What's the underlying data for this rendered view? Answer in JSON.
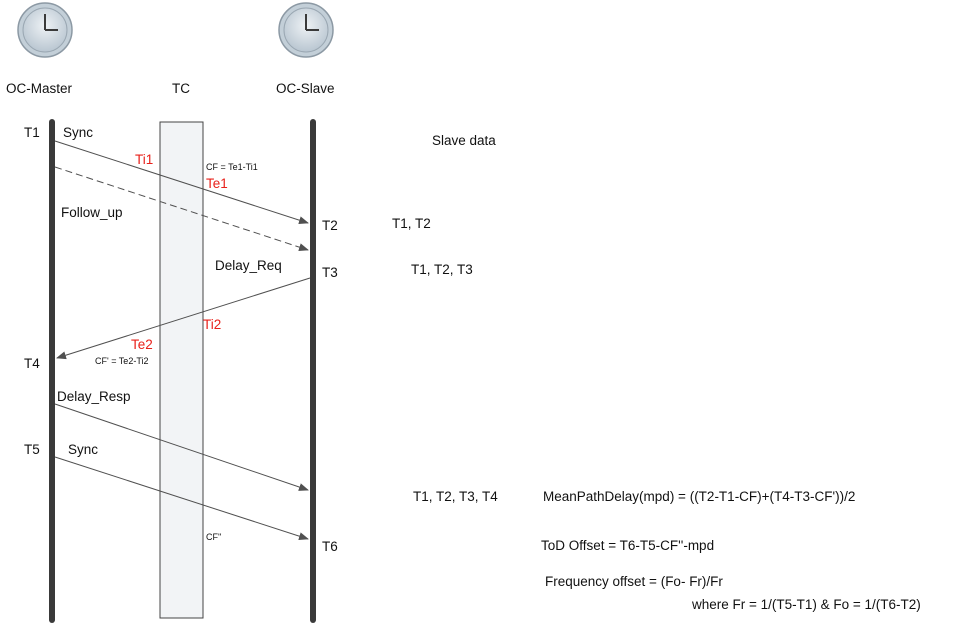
{
  "entities": {
    "master": "OC-Master",
    "tc": "TC",
    "slave": "OC-Slave"
  },
  "timestamps": {
    "t1": "T1",
    "t2": "T2",
    "t3": "T3",
    "t4": "T4",
    "t5": "T5",
    "t6": "T6"
  },
  "messages": {
    "sync1": "Sync",
    "follow_up": "Follow_up",
    "delay_req": "Delay_Req",
    "delay_resp": "Delay_Resp",
    "sync2": "Sync"
  },
  "tc_labels": {
    "ti1": "Ti1",
    "te1": "Te1",
    "cf1": "CF = Te1-Ti1",
    "ti2": "Ti2",
    "te2": "Te2",
    "cf2": "CF' = Te2-Ti2",
    "cf3": "CF''"
  },
  "slave_data": {
    "header": "Slave data",
    "row1": "T1, T2",
    "row2": "T1, T2, T3",
    "row3": "T1, T2, T3, T4"
  },
  "formulas": {
    "mpd": "MeanPathDelay(mpd) = ((T2-T1-CF)+(T4-T3-CF'))/2",
    "tod": "ToD Offset = T6-T5-CF''-mpd",
    "freq": "Frequency offset = (Fo- Fr)/Fr",
    "where": "where Fr = 1/(T5-T1) & Fo = 1/(T6-T2)"
  },
  "colors": {
    "timeline": "#3a3a3a",
    "arrow": "#505050",
    "tc_highlight": "#e8201a",
    "tc_box_fill": "#f2f4f6",
    "clock_body": "#c8d3dc"
  },
  "icons": {
    "master_clock": "clock-icon",
    "slave_clock": "clock-icon"
  }
}
